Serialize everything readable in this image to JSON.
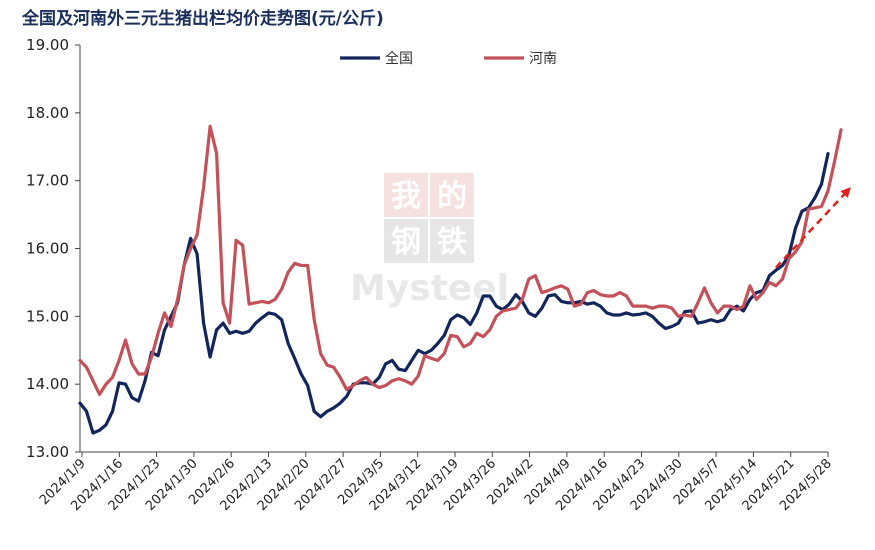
{
  "chart_data": {
    "type": "line",
    "title": "全国及河南外三元生猪出栏均价走势图(元/公斤)",
    "ylim": [
      13.0,
      19.0
    ],
    "yticks": [
      "19.00",
      "18.00",
      "17.00",
      "16.00",
      "15.00",
      "14.00",
      "13.00"
    ],
    "xtick_labels": [
      "2024/1/9",
      "2024/1/16",
      "2024/1/23",
      "2024/1/30",
      "2024/2/6",
      "2024/2/13",
      "2024/2/20",
      "2024/2/27",
      "2024/3/5",
      "2024/3/12",
      "2024/3/19",
      "2024/3/26",
      "2024/4/2",
      "2024/4/9",
      "2024/4/16",
      "2024/4/23",
      "2024/4/30",
      "2024/5/7",
      "2024/5/14",
      "2024/5/21",
      "2024/5/28"
    ],
    "legend": {
      "placement": "top-center"
    },
    "watermark": "我的钢铁 Mysteel",
    "series": [
      {
        "name": "全国",
        "color": "#13265c",
        "values": [
          13.72,
          13.6,
          13.28,
          13.32,
          13.4,
          13.6,
          14.02,
          14.0,
          13.8,
          13.75,
          14.05,
          14.47,
          14.42,
          14.8,
          15.0,
          15.2,
          15.75,
          16.15,
          15.92,
          14.9,
          14.4,
          14.8,
          14.9,
          14.75,
          14.78,
          14.75,
          14.78,
          14.9,
          14.98,
          15.05,
          15.03,
          14.95,
          14.6,
          14.38,
          14.15,
          13.98,
          13.6,
          13.52,
          13.6,
          13.65,
          13.72,
          13.82,
          14.0,
          14.02,
          14.02,
          14.0,
          14.1,
          14.3,
          14.35,
          14.22,
          14.2,
          14.35,
          14.5,
          14.45,
          14.5,
          14.6,
          14.72,
          14.95,
          15.02,
          14.98,
          14.88,
          15.05,
          15.3,
          15.3,
          15.15,
          15.1,
          15.18,
          15.32,
          15.22,
          15.05,
          15.0,
          15.12,
          15.3,
          15.32,
          15.22,
          15.2,
          15.2,
          15.22,
          15.18,
          15.2,
          15.15,
          15.05,
          15.02,
          15.02,
          15.05,
          15.02,
          15.03,
          15.05,
          15.0,
          14.9,
          14.82,
          14.85,
          14.9,
          15.07,
          15.08,
          14.9,
          14.92,
          14.95,
          14.92,
          14.95,
          15.1,
          15.15,
          15.08,
          15.25,
          15.35,
          15.38,
          15.6,
          15.68,
          15.75,
          15.9,
          16.3,
          16.55,
          16.6,
          16.75,
          16.95,
          17.4
        ]
      },
      {
        "name": "河南",
        "color": "#c45159",
        "values": [
          14.35,
          14.25,
          14.05,
          13.85,
          14.0,
          14.1,
          14.35,
          14.65,
          14.3,
          14.15,
          14.15,
          14.4,
          14.75,
          15.05,
          14.85,
          15.25,
          15.75,
          16.0,
          16.2,
          16.9,
          17.8,
          17.4,
          15.2,
          14.9,
          16.12,
          16.05,
          15.18,
          15.2,
          15.22,
          15.2,
          15.25,
          15.4,
          15.65,
          15.78,
          15.75,
          15.75,
          14.95,
          14.45,
          14.28,
          14.25,
          14.1,
          13.92,
          13.98,
          14.05,
          14.1,
          14.0,
          13.95,
          13.98,
          14.05,
          14.08,
          14.05,
          14.0,
          14.12,
          14.42,
          14.38,
          14.35,
          14.45,
          14.72,
          14.7,
          14.55,
          14.6,
          14.75,
          14.7,
          14.8,
          15.0,
          15.08,
          15.1,
          15.12,
          15.25,
          15.55,
          15.6,
          15.35,
          15.38,
          15.42,
          15.45,
          15.4,
          15.15,
          15.18,
          15.35,
          15.38,
          15.32,
          15.3,
          15.3,
          15.35,
          15.3,
          15.15,
          15.15,
          15.15,
          15.12,
          15.15,
          15.15,
          15.12,
          15.0,
          15.02,
          15.0,
          15.2,
          15.42,
          15.2,
          15.05,
          15.15,
          15.15,
          15.1,
          15.15,
          15.45,
          15.25,
          15.35,
          15.5,
          15.45,
          15.55,
          15.85,
          15.95,
          16.1,
          16.58,
          16.6,
          16.62,
          16.85,
          17.28,
          17.75
        ]
      }
    ],
    "annotations": [
      {
        "type": "arrow",
        "style": "dashed",
        "color": "#e0201a",
        "from": {
          "series_index": 107,
          "value": 15.72
        },
        "to": {
          "series_index": 118,
          "value": 16.85
        }
      }
    ]
  }
}
